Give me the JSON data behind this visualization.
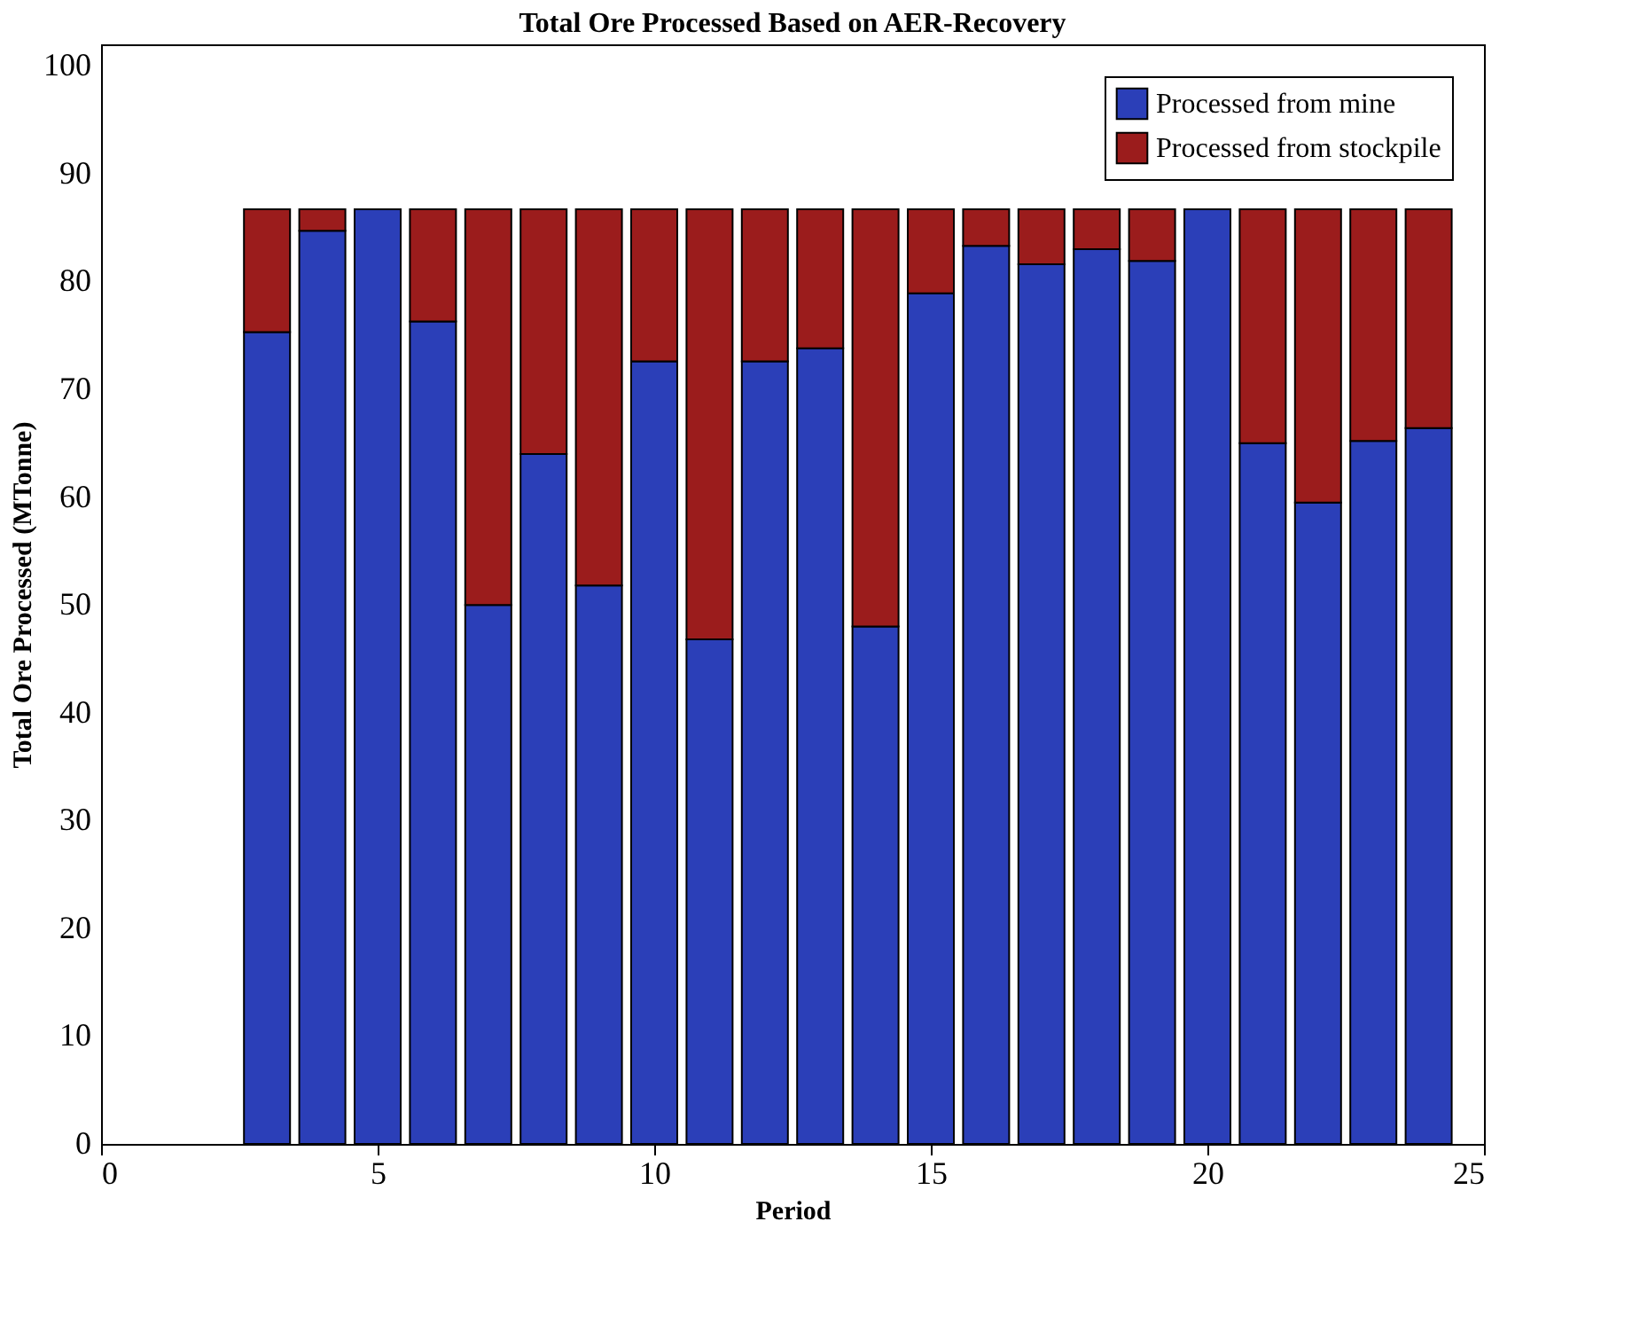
{
  "chart_data": {
    "type": "bar",
    "stacked": true,
    "title": "Total Ore Processed Based on AER-Recovery",
    "xlabel": "Period",
    "ylabel": "Total Ore Processed (MTonne)",
    "x": [
      1,
      2,
      3,
      4,
      5,
      6,
      7,
      8,
      9,
      10,
      11,
      12,
      13,
      14,
      15,
      16,
      17,
      18,
      19,
      20,
      21,
      22,
      23,
      24
    ],
    "series": [
      {
        "name": "Processed from mine",
        "color": "#2b3fb8",
        "values": [
          0,
          0,
          75.3,
          84.7,
          86.7,
          76.3,
          50,
          64,
          51.8,
          72.6,
          46.8,
          72.6,
          73.8,
          48,
          78.9,
          83.3,
          81.6,
          83.0,
          81.9,
          86.7,
          65,
          59.5,
          65.2,
          66.4
        ]
      },
      {
        "name": "Processed from stockpile",
        "color": "#9b1c1c",
        "values": [
          0,
          0,
          11.4,
          2.0,
          0,
          10.4,
          36.7,
          22.7,
          34.9,
          14.1,
          39.9,
          14.1,
          12.9,
          38.7,
          7.8,
          3.4,
          5.1,
          3.7,
          4.8,
          0,
          21.7,
          27.2,
          21.5,
          20.3
        ]
      }
    ],
    "xlim": [
      0,
      25
    ],
    "xticks": [
      0,
      5,
      10,
      15,
      20,
      25
    ],
    "ylim": [
      0,
      102
    ],
    "yticks": [
      0,
      10,
      20,
      30,
      40,
      50,
      60,
      70,
      80,
      90,
      100
    ],
    "grid": false,
    "legend": "top right"
  }
}
